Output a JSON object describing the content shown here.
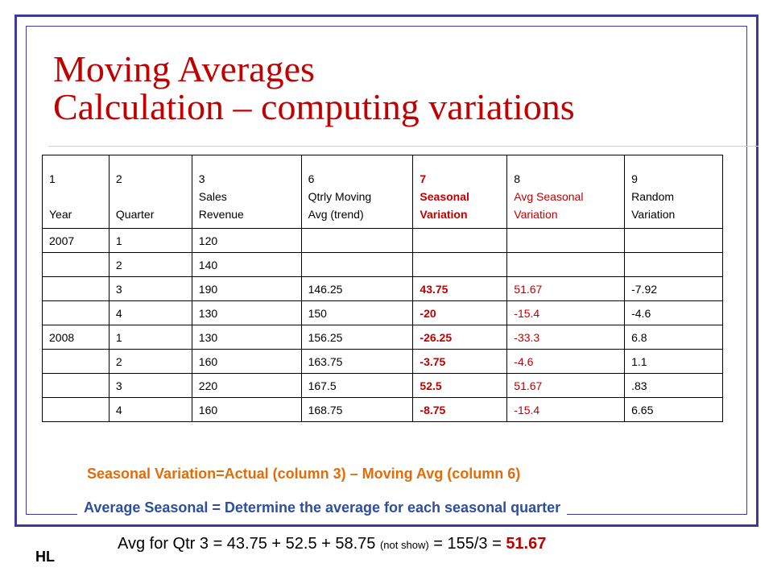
{
  "title": {
    "line1": "Moving Averages",
    "line2": "Calculation – computing variations"
  },
  "table": {
    "headers": [
      {
        "num": "1",
        "l1": "",
        "l2": "Year",
        "l3": ""
      },
      {
        "num": "2",
        "l1": "",
        "l2": "Quarter",
        "l3": ""
      },
      {
        "num": "3",
        "l1": "Sales",
        "l2": "Revenue",
        "l3": ""
      },
      {
        "num": "6",
        "l1": "Qtrly Moving",
        "l2": "Avg (trend)",
        "l3": ""
      },
      {
        "num": "7",
        "l1": "Seasonal",
        "l2": "Variation",
        "l3": ""
      },
      {
        "num": "8",
        "l1": "Avg Seasonal",
        "l2": "Variation",
        "l3": ""
      },
      {
        "num": "9",
        "l1": "Random",
        "l2": "Variation",
        "l3": ""
      }
    ],
    "rows": [
      {
        "year": "2007",
        "quarter": "1",
        "sales": "120",
        "mavg": "",
        "seasonal": "",
        "avg_seasonal": "",
        "random": ""
      },
      {
        "year": "",
        "quarter": "2",
        "sales": "140",
        "mavg": "",
        "seasonal": "",
        "avg_seasonal": "",
        "random": ""
      },
      {
        "year": "",
        "quarter": "3",
        "sales": "190",
        "mavg": "146.25",
        "seasonal": "43.75",
        "avg_seasonal": "51.67",
        "random": "-7.92"
      },
      {
        "year": "",
        "quarter": "4",
        "sales": "130",
        "mavg": "150",
        "seasonal": "-20",
        "avg_seasonal": "-15.4",
        "random": "-4.6"
      },
      {
        "year": "2008",
        "quarter": "1",
        "sales": "130",
        "mavg": "156.25",
        "seasonal": "-26.25",
        "avg_seasonal": "-33.3",
        "random": "6.8"
      },
      {
        "year": "",
        "quarter": "2",
        "sales": "160",
        "mavg": "163.75",
        "seasonal": "-3.75",
        "avg_seasonal": "-4.6",
        "random": "1.1"
      },
      {
        "year": "",
        "quarter": "3",
        "sales": "220",
        "mavg": "167.5",
        "seasonal": "52.5",
        "avg_seasonal": "51.67",
        "random": ".83"
      },
      {
        "year": "",
        "quarter": "4",
        "sales": "160",
        "mavg": "168.75",
        "seasonal": "-8.75",
        "avg_seasonal": "-15.4",
        "random": "6.65"
      }
    ]
  },
  "notes": {
    "seasonal": "Seasonal Variation=Actual (column 3) – Moving Avg (column 6)",
    "average": "Average Seasonal = Determine the average for each seasonal quarter"
  },
  "formula": {
    "prefix": "Avg for Qtr 3 = 43.75 + 52.5 + 58.75 ",
    "small": "(not show)",
    "middle": " = 155/3 = ",
    "result": "51.67"
  },
  "author": "HL",
  "colors": {
    "title": "#c00000",
    "border": "#3b3b9a",
    "note_orange": "#e36c09",
    "note_blue": "#2f4f9a"
  }
}
